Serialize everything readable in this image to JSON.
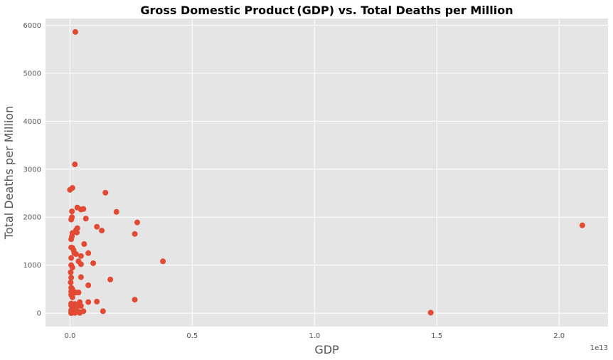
{
  "chart_data": {
    "type": "scatter",
    "title": "Gross Domestic Product (GDP) vs. Total Deaths per Million",
    "xlabel": "GDP",
    "ylabel": "Total Deaths per Million",
    "x_unit_multiplier": "1e13",
    "xlim": [
      -0.1,
      2.2
    ],
    "ylim": [
      -280,
      6140
    ],
    "xticks": [
      0,
      0.5,
      1.0,
      1.5,
      2.0
    ],
    "xtick_labels": [
      "0.0",
      "0.5",
      "1.0",
      "1.5",
      "2.0"
    ],
    "yticks": [
      0,
      1000,
      2000,
      3000,
      4000,
      5000,
      6000
    ],
    "ytick_labels": [
      "0",
      "1000",
      "2000",
      "3000",
      "4000",
      "5000",
      "6000"
    ],
    "grid": true,
    "style": "ggplot",
    "colors": {
      "marker": "#E24A33",
      "plot_bg": "#E5E5E5",
      "grid": "#FFFFFF"
    },
    "series": [
      {
        "points": [
          [
            0.022,
            5860
          ],
          [
            0.02,
            3100
          ],
          [
            0.0,
            2570
          ],
          [
            0.01,
            2610
          ],
          [
            0.145,
            2510
          ],
          [
            0.03,
            2200
          ],
          [
            0.045,
            2160
          ],
          [
            0.055,
            2170
          ],
          [
            0.008,
            2120
          ],
          [
            0.19,
            2110
          ],
          [
            0.008,
            2000
          ],
          [
            0.005,
            1950
          ],
          [
            0.065,
            1970
          ],
          [
            0.275,
            1890
          ],
          [
            0.11,
            1800
          ],
          [
            0.03,
            1770
          ],
          [
            0.025,
            1730
          ],
          [
            0.13,
            1720
          ],
          [
            0.01,
            1670
          ],
          [
            0.028,
            1680
          ],
          [
            0.265,
            1650
          ],
          [
            0.008,
            1600
          ],
          [
            0.005,
            1540
          ],
          [
            0.058,
            1440
          ],
          [
            0.005,
            1370
          ],
          [
            0.01,
            1360
          ],
          [
            0.015,
            1310
          ],
          [
            0.018,
            1250
          ],
          [
            0.025,
            1230
          ],
          [
            0.075,
            1250
          ],
          [
            0.045,
            1190
          ],
          [
            0.005,
            1150
          ],
          [
            0.035,
            1080
          ],
          [
            0.38,
            1080
          ],
          [
            0.095,
            1040
          ],
          [
            0.045,
            1020
          ],
          [
            0.005,
            1000
          ],
          [
            0.01,
            950
          ],
          [
            0.003,
            850
          ],
          [
            0.045,
            750
          ],
          [
            0.005,
            740
          ],
          [
            0.165,
            700
          ],
          [
            0.003,
            640
          ],
          [
            0.075,
            580
          ],
          [
            0.005,
            530
          ],
          [
            0.01,
            500
          ],
          [
            0.005,
            450
          ],
          [
            0.015,
            420
          ],
          [
            0.025,
            430
          ],
          [
            0.035,
            430
          ],
          [
            0.005,
            380
          ],
          [
            0.01,
            330
          ],
          [
            0.265,
            280
          ],
          [
            0.11,
            240
          ],
          [
            0.075,
            230
          ],
          [
            0.04,
            230
          ],
          [
            0.005,
            200
          ],
          [
            0.02,
            190
          ],
          [
            0.005,
            160
          ],
          [
            0.01,
            140
          ],
          [
            0.03,
            140
          ],
          [
            0.045,
            150
          ],
          [
            0.01,
            100
          ],
          [
            0.015,
            80
          ],
          [
            0.005,
            60
          ],
          [
            0.02,
            50
          ],
          [
            0.035,
            30
          ],
          [
            0.055,
            40
          ],
          [
            0.135,
            40
          ],
          [
            0.005,
            20
          ],
          [
            0.01,
            10
          ],
          [
            0.02,
            5
          ],
          [
            0.04,
            5
          ],
          [
            0.005,
            0
          ],
          [
            1.475,
            10
          ],
          [
            2.095,
            1830
          ]
        ]
      }
    ]
  }
}
